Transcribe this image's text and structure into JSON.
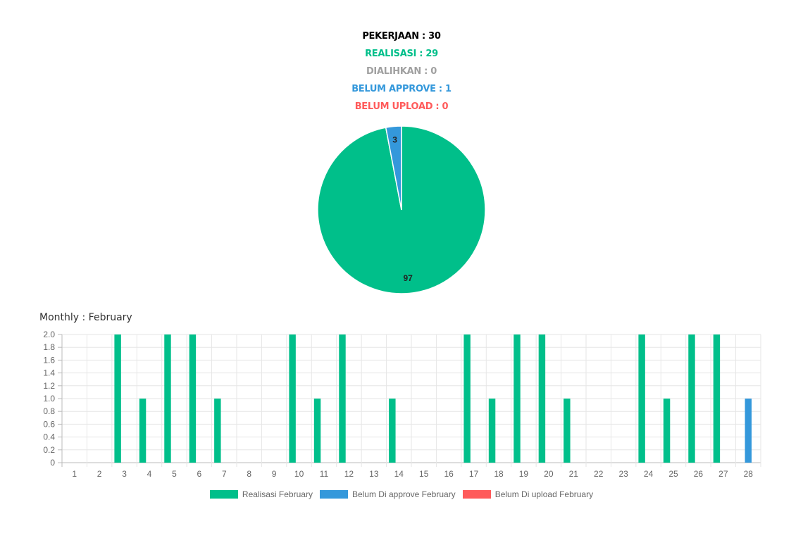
{
  "summary": {
    "pekerjaan": "PEKERJAAN : 30",
    "realisasi": "REALISASI : 29",
    "dialihkan": "DIALIHKAN : 0",
    "belum_approve": "BELUM APPROVE : 1",
    "belum_upload": "BELUM UPLOAD : 0"
  },
  "colors": {
    "realisasi": "#00bf8a",
    "approve": "#3498db",
    "upload": "#ff5a5a",
    "dialihkan": "#a0a0a0",
    "pekerjaan": "#000000"
  },
  "monthly_title": "Monthly : February",
  "chart_data": [
    {
      "type": "pie",
      "labels": [
        "97",
        "3"
      ],
      "values": [
        97,
        3
      ],
      "colors": [
        "#00bf8a",
        "#3498db"
      ]
    },
    {
      "type": "bar",
      "title": "Monthly : February",
      "categories": [
        "1",
        "2",
        "3",
        "4",
        "5",
        "6",
        "7",
        "8",
        "9",
        "10",
        "11",
        "12",
        "13",
        "14",
        "15",
        "16",
        "17",
        "18",
        "19",
        "20",
        "21",
        "22",
        "23",
        "24",
        "25",
        "26",
        "27",
        "28"
      ],
      "ylim": [
        0,
        2.0
      ],
      "yticks": [
        "0",
        "0.2",
        "0.4",
        "0.6",
        "0.8",
        "1.0",
        "1.2",
        "1.4",
        "1.6",
        "1.8",
        "2.0"
      ],
      "grid": true,
      "legend_position": "bottom",
      "series": [
        {
          "name": "Realisasi February",
          "color": "#00bf8a",
          "values": [
            0,
            0,
            2,
            1,
            2,
            2,
            1,
            0,
            0,
            2,
            1,
            2,
            0,
            1,
            0,
            0,
            2,
            1,
            2,
            2,
            1,
            0,
            0,
            2,
            1,
            2,
            2,
            0
          ]
        },
        {
          "name": "Belum Di approve February",
          "color": "#3498db",
          "values": [
            0,
            0,
            0,
            0,
            0,
            0,
            0,
            0,
            0,
            0,
            0,
            0,
            0,
            0,
            0,
            0,
            0,
            0,
            0,
            0,
            0,
            0,
            0,
            0,
            0,
            0,
            0,
            1
          ]
        },
        {
          "name": "Belum Di upload February",
          "color": "#ff5a5a",
          "values": [
            0,
            0,
            0,
            0,
            0,
            0,
            0,
            0,
            0,
            0,
            0,
            0,
            0,
            0,
            0,
            0,
            0,
            0,
            0,
            0,
            0,
            0,
            0,
            0,
            0,
            0,
            0,
            0
          ]
        }
      ]
    }
  ]
}
